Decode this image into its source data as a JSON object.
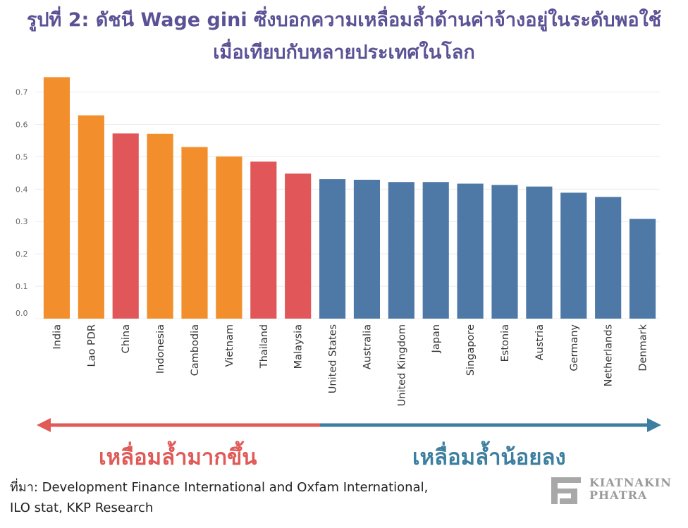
{
  "title_line1": "รูปที่ 2: ดัชนี Wage gini ซึ่งบอกความเหลื่อมล้ำด้านค่าจ้างอยู่ในระดับพอใช้",
  "title_line2": "เมื่อเทียบกับหลายประเทศในโลก",
  "chart_data": {
    "type": "bar",
    "categories": [
      "India",
      "Lao PDR",
      "China",
      "Indonesia",
      "Cambodia",
      "Vietnam",
      "Thailand",
      "Malaysia",
      "United States",
      "Australia",
      "United Kingdom",
      "Japan",
      "Singapore",
      "Estonia",
      "Austria",
      "Germany",
      "Netherlands",
      "Denmark"
    ],
    "values": [
      0.746,
      0.628,
      0.572,
      0.571,
      0.53,
      0.501,
      0.485,
      0.448,
      0.431,
      0.429,
      0.422,
      0.422,
      0.417,
      0.413,
      0.408,
      0.389,
      0.376,
      0.308
    ],
    "bar_colors": [
      "#f28e2b",
      "#f28e2b",
      "#e15759",
      "#f28e2b",
      "#f28e2b",
      "#f28e2b",
      "#e15759",
      "#e15759",
      "#4e79a7",
      "#4e79a7",
      "#4e79a7",
      "#4e79a7",
      "#4e79a7",
      "#4e79a7",
      "#4e79a7",
      "#4e79a7",
      "#4e79a7",
      "#4e79a7"
    ],
    "yticks": [
      "0.0",
      "0.1",
      "0.2",
      "0.3",
      "0.4",
      "0.5",
      "0.6",
      "0.7"
    ],
    "ylim": [
      0,
      0.76
    ],
    "grid": true
  },
  "arrow": {
    "left_label": "เหลื่อมล้ำมากขึ้น",
    "right_label": "เหลื่อมล้ำน้อยลง",
    "left_color": "#e05a57",
    "right_color": "#3d7fa0"
  },
  "source_line1": "ที่มา: Development Finance International and Oxfam International,",
  "source_line2": "ILO stat, KKP Research",
  "logo": {
    "line1": "KIATNAKIN",
    "line2": "PHATRA",
    "icon": "kkp-logo-icon"
  }
}
